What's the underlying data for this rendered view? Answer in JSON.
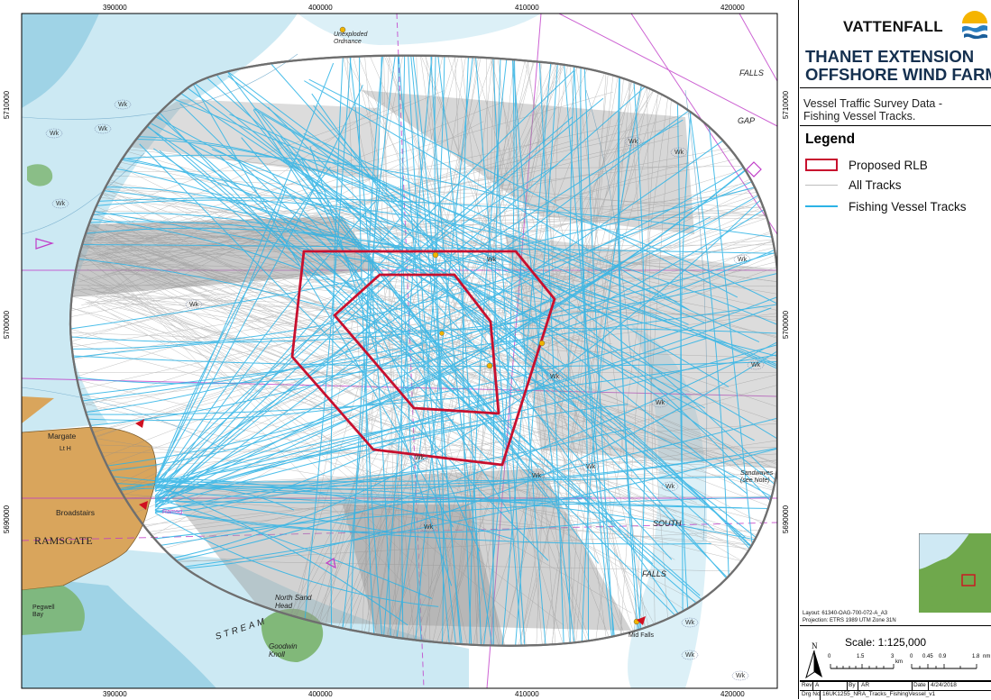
{
  "map": {
    "easting_ticks": [
      "390000",
      "400000",
      "410000",
      "420000"
    ],
    "northing_ticks": [
      "5710000",
      "5700000",
      "5690000"
    ],
    "labels": {
      "unexploded": "Unexploded\nOrdnance",
      "falls_n": "FALLS",
      "gap": "GAP",
      "margate": "Margate",
      "broadstairs": "Broadstairs",
      "ramsgate": "RAMSGATE",
      "south": "SOUTH",
      "falls_s": "FALLS",
      "stream": "STREAM",
      "north_sand": "North Sand\nHead",
      "goodwin": "Goodwin\nKnoll",
      "sandwave": "Sandwaves\n(see Note)",
      "pegwell": "Pegwell\nBay",
      "mid_falls": "Mid Falls",
      "lt_h": "Lt H",
      "ramsg": "Ramsg."
    },
    "colors": {
      "sea_deep": "#ffffff",
      "sea_shallow": "#cce9f3",
      "sea_inshore": "#9fd3e6",
      "land": "#d9a55c",
      "drying": "#79b36c",
      "tracks": "#9b9b9b",
      "fishing": "#2cb3e6",
      "rlb": "#c8102e",
      "boundary": "#6f6f6f",
      "chart_magenta": "#c03cc8"
    }
  },
  "panel": {
    "logo": {
      "brand": "VATTENFALL",
      "icon": "sun-wave-logo-icon"
    },
    "project_title": [
      "THANET EXTENSION",
      "OFFSHORE WIND FARM"
    ],
    "subtitle": [
      "Vessel Traffic Survey Data -",
      "Fishing Vessel Tracks."
    ],
    "legend": {
      "title": "Legend",
      "items": [
        {
          "label": "Proposed RLB",
          "style": "rlb-box"
        },
        {
          "label": "All Tracks",
          "style": "grey-line"
        },
        {
          "label": "Fishing Vessel Tracks",
          "style": "blue-line"
        }
      ]
    },
    "layout_line": "Layout: 61340-OAG-700-072-A_A3",
    "projection_line": "Projection: ETRS 1989 UTM Zone 31N",
    "north": "N",
    "scale": "Scale: 1:125,000",
    "scale_km": [
      "0",
      "1.5",
      "3",
      "km"
    ],
    "scale_nm": [
      "0",
      "0.45",
      "0.9",
      "1.8",
      "nm"
    ],
    "info": {
      "rev_label": "Rev",
      "rev": "A",
      "by_label": "By",
      "by": "AR",
      "date_label": "Date",
      "date": "4/24/2018",
      "drg_label": "Drg No",
      "drg": "16UK1255_NRA_Tracks_FishingVessel_v1"
    }
  }
}
